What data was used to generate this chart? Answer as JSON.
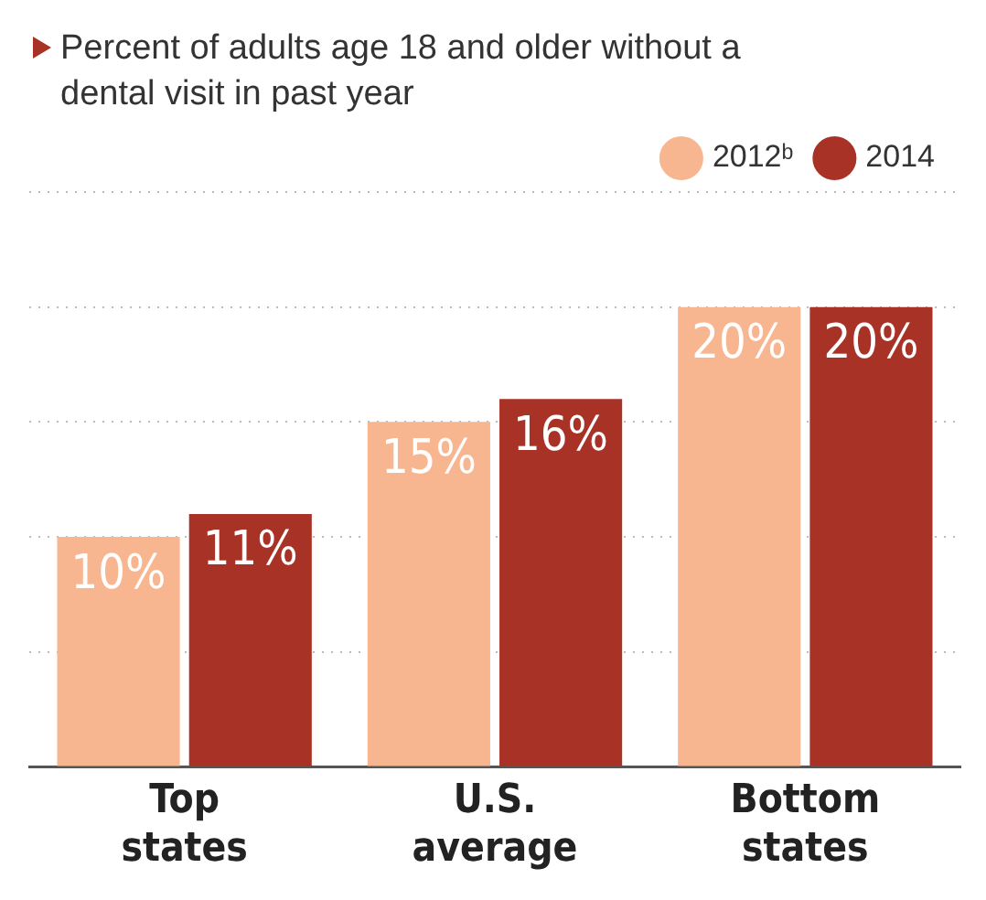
{
  "chart_data": {
    "type": "bar",
    "title": "Percent of adults age 18 and older without a dental visit in past year",
    "categories": [
      "Top states",
      "U.S. average",
      "Bottom states"
    ],
    "series": [
      {
        "name": "2012ᵇ",
        "color": "#f7b68f",
        "values": [
          10,
          15,
          20
        ],
        "value_labels": [
          "10%",
          "15%",
          "20%"
        ]
      },
      {
        "name": "2014",
        "color": "#a93226",
        "values": [
          11,
          16,
          20
        ],
        "value_labels": [
          "11%",
          "16%",
          "20%"
        ]
      }
    ],
    "ylim": [
      0,
      25
    ],
    "yticks": [
      {
        "value": 0,
        "label": null
      },
      {
        "value": 5,
        "label": null
      },
      {
        "value": 10,
        "label": null
      },
      {
        "value": 15,
        "label": null
      },
      {
        "value": 20,
        "label": null
      },
      {
        "value": 25,
        "label": null
      }
    ],
    "grid": "y",
    "legend": "top right",
    "tick_labels": "x"
  }
}
